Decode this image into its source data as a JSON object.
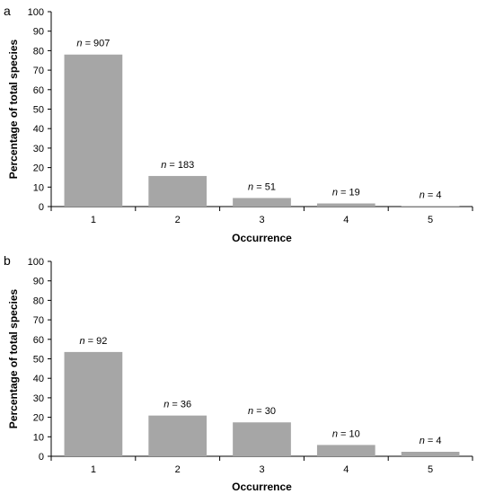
{
  "chart_data": [
    {
      "panel_label": "a",
      "type": "bar",
      "categories": [
        "1",
        "2",
        "3",
        "4",
        "5"
      ],
      "values": [
        78,
        15.7,
        4.4,
        1.6,
        0.3
      ],
      "data_labels": [
        {
          "prefix": "n",
          "text": " = 907"
        },
        {
          "prefix": "n",
          "text": " = 183"
        },
        {
          "prefix": "n",
          "text": " = 51"
        },
        {
          "prefix": "n",
          "text": " = 19"
        },
        {
          "prefix": "n",
          "text": " = 4"
        }
      ],
      "xlabel": "Occurrence",
      "ylabel": "Percentage of total species",
      "ylim": [
        0,
        100
      ],
      "yticks": [
        "0",
        "10",
        "20",
        "30",
        "40",
        "50",
        "60",
        "70",
        "80",
        "90",
        "100"
      ],
      "bar_color": "#a6a6a6",
      "grid": false
    },
    {
      "panel_label": "b",
      "type": "bar",
      "categories": [
        "1",
        "2",
        "3",
        "4",
        "5"
      ],
      "values": [
        53.5,
        20.9,
        17.4,
        5.8,
        2.3
      ],
      "data_labels": [
        {
          "prefix": "n",
          "text": " = 92"
        },
        {
          "prefix": "n",
          "text": " = 36"
        },
        {
          "prefix": "n",
          "text": " = 30"
        },
        {
          "prefix": "n",
          "text": " = 10"
        },
        {
          "prefix": "n",
          "text": " = 4"
        }
      ],
      "xlabel": "Occurrence",
      "ylabel": "Percentage of total species",
      "ylim": [
        0,
        100
      ],
      "yticks": [
        "0",
        "10",
        "20",
        "30",
        "40",
        "50",
        "60",
        "70",
        "80",
        "90",
        "100"
      ],
      "bar_color": "#a6a6a6",
      "grid": false
    }
  ]
}
